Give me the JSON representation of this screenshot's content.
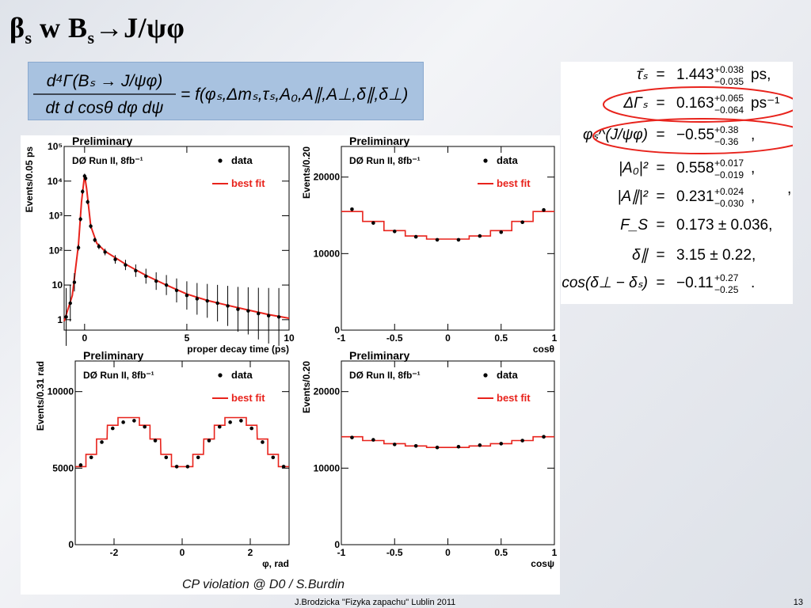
{
  "title": {
    "beta": "β",
    "beta_sub": "s",
    "text": " w B",
    "b_sub": "s",
    "arrow": "→J/ψφ"
  },
  "formula": {
    "lhs_num": "d⁴Γ(Bₛ → J/ψφ)",
    "lhs_den": "dt d cosθ dφ dψ",
    "rhs": "= f(φₛ,Δmₛ,τₛ,A₀,A∥,A⊥,δ∥,δ⊥)"
  },
  "params": [
    {
      "lhs": "τ̄ₛ",
      "rhs": "1.443",
      "sup": "+0.038",
      "sub": "−0.035",
      "unit": " ps,"
    },
    {
      "lhs": "ΔΓₛ",
      "rhs": "0.163",
      "sup": "+0.065",
      "sub": "−0.064",
      "unit": " ps⁻¹"
    },
    {
      "lhs": "φₛ^(J/ψφ)",
      "rhs": "−0.55",
      "sup": "+0.38",
      "sub": "−0.36",
      "unit": ","
    },
    {
      "lhs": "|A₀|²",
      "rhs": "0.558",
      "sup": "+0.017",
      "sub": "−0.019",
      "unit": ","
    },
    {
      "lhs": "|A∥|²",
      "rhs": "0.231",
      "sup": "+0.024",
      "sub": "−0.030",
      "unit": ","
    },
    {
      "lhs": "F_S",
      "rhs": "0.173 ± 0.036,",
      "sup": "",
      "sub": "",
      "unit": ""
    },
    {
      "lhs": "δ∥",
      "rhs": "3.15 ± 0.22,",
      "sup": "",
      "sub": "",
      "unit": ""
    },
    {
      "lhs": "cos(δ⊥ − δₛ)",
      "rhs": "−0.11",
      "sup": "+0.27",
      "sub": "−0.25",
      "unit": "."
    }
  ],
  "params_comma": ",",
  "caption": "CP violation @ D0 / S.Burdin",
  "footer": {
    "text": "J.Brodzicka   \"Fizyka zapachu\"   Lublin 2011",
    "page": "13"
  },
  "colors": {
    "data": "#000000",
    "fit": "#e8231c",
    "circle": "#e8231c",
    "formula_bg": "#a8c2e0"
  },
  "chart_data": [
    {
      "type": "scatter",
      "title": "Preliminary",
      "subtitle": "DØ Run II, 8fb⁻¹",
      "legend": [
        "data",
        "best fit"
      ],
      "legend_placement": "top-right",
      "xlabel": "proper decay time (ps)",
      "ylabel": "Events/0.05 ps",
      "ylog": true,
      "xlim": [
        -1,
        10
      ],
      "ylim": [
        0.5,
        100000
      ],
      "xticks": [
        0,
        5,
        10
      ],
      "yticks": [
        {
          "v": 1,
          "label": "1"
        },
        {
          "v": 10,
          "label": "10"
        },
        {
          "v": 100,
          "label": "10²"
        },
        {
          "v": 1000,
          "label": "10³"
        },
        {
          "v": 10000,
          "label": "10⁴"
        },
        {
          "v": 100000,
          "label": "10⁵"
        }
      ],
      "series": [
        {
          "name": "data",
          "x": [
            -0.9,
            -0.7,
            -0.5,
            -0.3,
            -0.2,
            -0.1,
            0.0,
            0.05,
            0.15,
            0.3,
            0.5,
            0.7,
            1.0,
            1.5,
            2.0,
            2.5,
            3.0,
            3.5,
            4.0,
            4.5,
            5.0,
            5.5,
            6.0,
            6.5,
            7.0,
            7.5,
            8.0,
            8.5,
            9.0,
            9.5
          ],
          "y": [
            1.2,
            3,
            12,
            120,
            800,
            5000,
            14000,
            12000,
            2500,
            500,
            200,
            130,
            90,
            55,
            38,
            26,
            18,
            13,
            10,
            7,
            5,
            4,
            3.5,
            3,
            2.5,
            2,
            1.8,
            1.5,
            1.3,
            1.2
          ]
        },
        {
          "name": "best fit",
          "x": [
            -1,
            -0.6,
            -0.3,
            -0.15,
            0,
            0.1,
            0.3,
            0.6,
            1,
            2,
            3,
            4,
            5,
            6,
            7,
            8,
            9,
            10
          ],
          "y": [
            0.9,
            5,
            150,
            2500,
            15000,
            6000,
            500,
            160,
            95,
            40,
            19,
            10,
            5.5,
            3.6,
            2.6,
            1.9,
            1.4,
            1.1
          ]
        }
      ]
    },
    {
      "type": "line",
      "title": "Preliminary",
      "subtitle": "DØ Run II, 8fb⁻¹",
      "legend": [
        "data",
        "best fit"
      ],
      "legend_placement": "top-right",
      "xlabel": "cosθ",
      "ylabel": "Events/0.20",
      "xlim": [
        -1,
        1
      ],
      "ylim": [
        0,
        24000
      ],
      "xticks": [
        -1,
        -0.5,
        0,
        0.5,
        1
      ],
      "yticks": [
        0,
        10000,
        20000
      ],
      "x": [
        -0.9,
        -0.7,
        -0.5,
        -0.3,
        -0.1,
        0.1,
        0.3,
        0.5,
        0.7,
        0.9
      ],
      "series": [
        {
          "name": "data",
          "values": [
            15800,
            14000,
            12900,
            12200,
            11800,
            11800,
            12300,
            12800,
            14100,
            15700
          ]
        },
        {
          "name": "best fit",
          "values": [
            15500,
            14200,
            13000,
            12300,
            11900,
            11900,
            12300,
            13000,
            14200,
            15500
          ]
        }
      ]
    },
    {
      "type": "line",
      "title": "Preliminary",
      "subtitle": "DØ Run II, 8fb⁻¹",
      "legend": [
        "data",
        "best fit"
      ],
      "legend_placement": "top-right",
      "xlabel": "φ, rad",
      "ylabel": "Events/0.31 rad",
      "xlim": [
        -3.14,
        3.14
      ],
      "ylim": [
        0,
        12000
      ],
      "xticks": [
        -2,
        0,
        2
      ],
      "yticks": [
        0,
        5000,
        10000
      ],
      "x": [
        -2.98,
        -2.67,
        -2.36,
        -2.04,
        -1.73,
        -1.41,
        -1.1,
        -0.79,
        -0.47,
        -0.16,
        0.16,
        0.47,
        0.79,
        1.1,
        1.41,
        1.73,
        2.04,
        2.36,
        2.67,
        2.98
      ],
      "series": [
        {
          "name": "data",
          "values": [
            5200,
            5700,
            6700,
            7600,
            8000,
            8100,
            7700,
            6800,
            5700,
            5100,
            5100,
            5700,
            6800,
            7700,
            8000,
            8100,
            7600,
            6700,
            5700,
            5100
          ]
        },
        {
          "name": "best fit",
          "values": [
            5100,
            5900,
            6900,
            7800,
            8300,
            8300,
            7800,
            6900,
            5900,
            5100,
            5100,
            5900,
            6900,
            7800,
            8300,
            8300,
            7800,
            6900,
            5900,
            5100
          ]
        }
      ]
    },
    {
      "type": "line",
      "title": "Preliminary",
      "subtitle": "DØ Run II, 8fb⁻¹",
      "legend": [
        "data",
        "best fit"
      ],
      "legend_placement": "top-right",
      "xlabel": "cosψ",
      "ylabel": "Events/0.20",
      "xlim": [
        -1,
        1
      ],
      "ylim": [
        0,
        24000
      ],
      "xticks": [
        -1,
        -0.5,
        0,
        0.5,
        1
      ],
      "yticks": [
        0,
        10000,
        20000
      ],
      "x": [
        -0.9,
        -0.7,
        -0.5,
        -0.3,
        -0.1,
        0.1,
        0.3,
        0.5,
        0.7,
        0.9
      ],
      "series": [
        {
          "name": "data",
          "values": [
            14000,
            13700,
            13100,
            12900,
            12700,
            12800,
            13000,
            13200,
            13600,
            14100
          ]
        },
        {
          "name": "best fit",
          "values": [
            14100,
            13600,
            13200,
            12900,
            12700,
            12700,
            12900,
            13200,
            13600,
            14100
          ]
        }
      ]
    }
  ]
}
